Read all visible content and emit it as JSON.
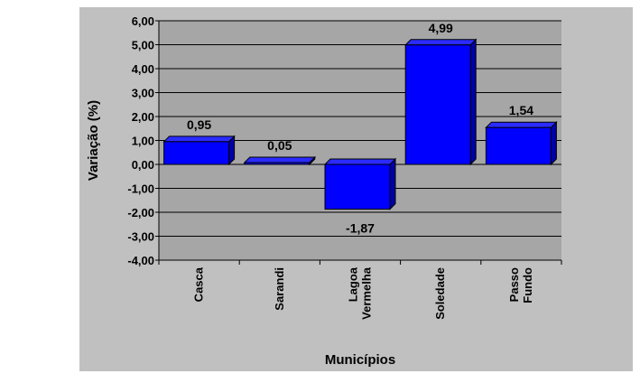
{
  "chart_data": {
    "type": "bar",
    "categories": [
      [
        "Casca"
      ],
      [
        "Sarandi"
      ],
      [
        "Lagoa",
        "Vermelha"
      ],
      [
        "Soledade"
      ],
      [
        "Passo",
        "Fundo"
      ]
    ],
    "values": [
      0.95,
      0.05,
      -1.87,
      4.99,
      1.54
    ],
    "data_labels": [
      "0,95",
      "0,05",
      "-1,87",
      "4,99",
      "1,54"
    ],
    "ylim": [
      -4,
      6
    ],
    "yticks": [
      6,
      5,
      4,
      3,
      2,
      1,
      0,
      -1,
      -2,
      -3,
      -4
    ],
    "ytick_labels": [
      "6,00",
      "5,00",
      "4,00",
      "3,00",
      "2,00",
      "1,00",
      "0,00",
      "-1,00",
      "-2,00",
      "-3,00",
      "-4,00"
    ],
    "xlabel": "Municípios",
    "ylabel": "Variação (%)",
    "grid": true,
    "legend": "none",
    "colors": {
      "background": "#c0c0c0",
      "plot_area": "#a6a6a6",
      "bar_front": "#0000ff",
      "bar_side": "#0000a8",
      "bar_top": "#2b2bff",
      "grid": "#000000"
    }
  }
}
